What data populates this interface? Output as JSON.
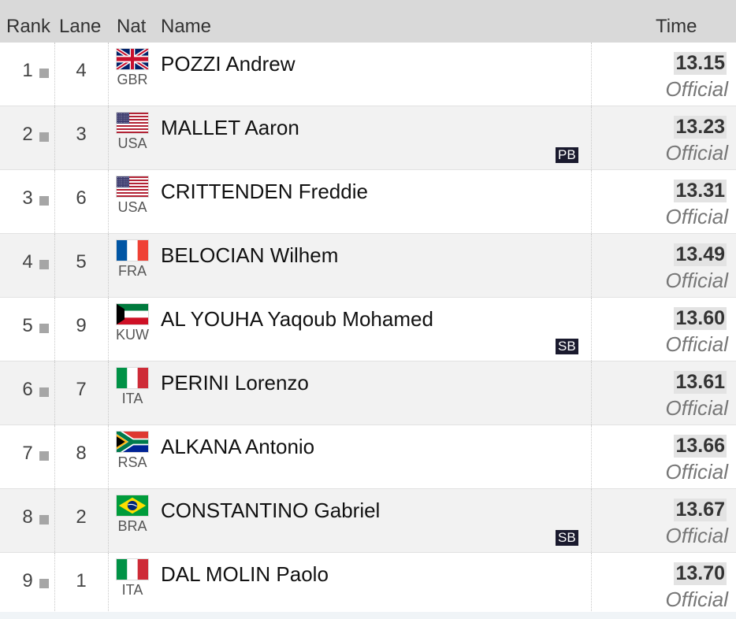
{
  "header": {
    "rank": "Rank",
    "lane": "Lane",
    "nat": "Nat",
    "name": "Name",
    "time": "Time"
  },
  "rows": [
    {
      "rank": "1",
      "lane": "4",
      "nat": "GBR",
      "name": "POZZI Andrew",
      "time": "13.15",
      "status": "Official",
      "badge": "",
      "flag_icon": "flag-gbr-icon"
    },
    {
      "rank": "2",
      "lane": "3",
      "nat": "USA",
      "name": "MALLET Aaron",
      "time": "13.23",
      "status": "Official",
      "badge": "PB",
      "flag_icon": "flag-usa-icon"
    },
    {
      "rank": "3",
      "lane": "6",
      "nat": "USA",
      "name": "CRITTENDEN Freddie",
      "time": "13.31",
      "status": "Official",
      "badge": "",
      "flag_icon": "flag-usa-icon"
    },
    {
      "rank": "4",
      "lane": "5",
      "nat": "FRA",
      "name": "BELOCIAN Wilhem",
      "time": "13.49",
      "status": "Official",
      "badge": "",
      "flag_icon": "flag-fra-icon"
    },
    {
      "rank": "5",
      "lane": "9",
      "nat": "KUW",
      "name": "AL YOUHA Yaqoub Mohamed",
      "time": "13.60",
      "status": "Official",
      "badge": "SB",
      "flag_icon": "flag-kuw-icon"
    },
    {
      "rank": "6",
      "lane": "7",
      "nat": "ITA",
      "name": "PERINI Lorenzo",
      "time": "13.61",
      "status": "Official",
      "badge": "",
      "flag_icon": "flag-ita-icon"
    },
    {
      "rank": "7",
      "lane": "8",
      "nat": "RSA",
      "name": "ALKANA Antonio",
      "time": "13.66",
      "status": "Official",
      "badge": "",
      "flag_icon": "flag-rsa-icon"
    },
    {
      "rank": "8",
      "lane": "2",
      "nat": "BRA",
      "name": "CONSTANTINO Gabriel",
      "time": "13.67",
      "status": "Official",
      "badge": "SB",
      "flag_icon": "flag-bra-icon"
    },
    {
      "rank": "9",
      "lane": "1",
      "nat": "ITA",
      "name": "DAL MOLIN Paolo",
      "time": "13.70",
      "status": "Official",
      "badge": "",
      "flag_icon": "flag-ita-icon"
    }
  ],
  "colors": {
    "header_bg": "#d9d9d9",
    "badge_bg": "#1a1a2e",
    "row_alt_bg": "#f2f2f2"
  }
}
